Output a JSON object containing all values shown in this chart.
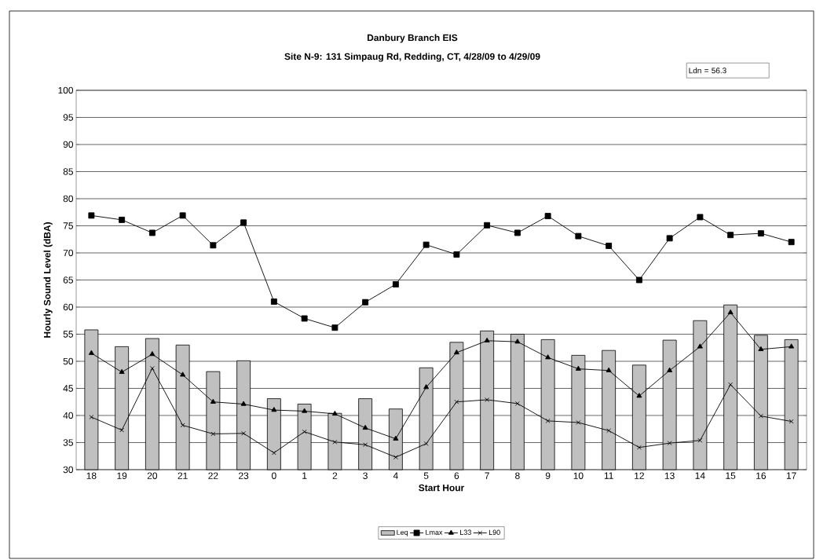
{
  "chart_data": {
    "type": "bar",
    "title": "Danbury Branch EIS",
    "subtitle": "Site N-9: 131 Simpaug Rd, Redding, CT, 4/28/09 to 4/29/09",
    "xlabel": "Start Hour",
    "ylabel": "Hourly Sound Level (dBA)",
    "annotations": [
      "Ldn = 56.3"
    ],
    "categories": [
      "18",
      "19",
      "20",
      "21",
      "22",
      "23",
      "0",
      "1",
      "2",
      "3",
      "4",
      "5",
      "6",
      "7",
      "8",
      "9",
      "10",
      "11",
      "12",
      "13",
      "14",
      "15",
      "16",
      "17"
    ],
    "ylim": [
      30,
      100
    ],
    "yticks": [
      30,
      35,
      40,
      45,
      50,
      55,
      60,
      65,
      70,
      75,
      80,
      85,
      90,
      95,
      100
    ],
    "grid": "y",
    "legend": "bottom",
    "series": [
      {
        "name": "Leq",
        "color": "#c0c0c0",
        "values": [
          55.8,
          52.7,
          54.2,
          53.0,
          48.1,
          50.1,
          43.1,
          42.1,
          40.4,
          43.1,
          41.2,
          48.8,
          53.5,
          55.6,
          55.0,
          54.0,
          51.1,
          52.0,
          49.3,
          53.9,
          57.5,
          60.4,
          54.8,
          54.0
        ]
      },
      {
        "name": "Lmax",
        "type": "line",
        "color": "#000000",
        "marker": "square",
        "values": [
          76.9,
          76.1,
          73.7,
          76.9,
          71.4,
          75.6,
          61.0,
          57.9,
          56.2,
          60.9,
          64.2,
          71.5,
          69.7,
          75.1,
          73.7,
          76.8,
          73.1,
          71.3,
          65.0,
          72.7,
          76.6,
          73.3,
          73.6,
          72.0
        ]
      },
      {
        "name": "L33",
        "type": "line",
        "color": "#000000",
        "marker": "triangle",
        "values": [
          51.5,
          48.0,
          51.3,
          47.5,
          42.5,
          42.1,
          41.0,
          40.8,
          40.3,
          37.7,
          35.7,
          45.2,
          51.6,
          53.8,
          53.6,
          50.7,
          48.6,
          48.3,
          43.6,
          48.3,
          52.7,
          59.0,
          52.2,
          52.7
        ]
      },
      {
        "name": "L90",
        "type": "line",
        "color": "#000000",
        "marker": "cross",
        "values": [
          39.7,
          37.3,
          48.7,
          38.2,
          36.6,
          36.7,
          33.1,
          37.0,
          35.1,
          34.6,
          32.3,
          34.8,
          42.5,
          42.9,
          42.2,
          39.0,
          38.7,
          37.2,
          34.1,
          34.9,
          35.4,
          45.7,
          39.9,
          38.9
        ]
      }
    ]
  }
}
